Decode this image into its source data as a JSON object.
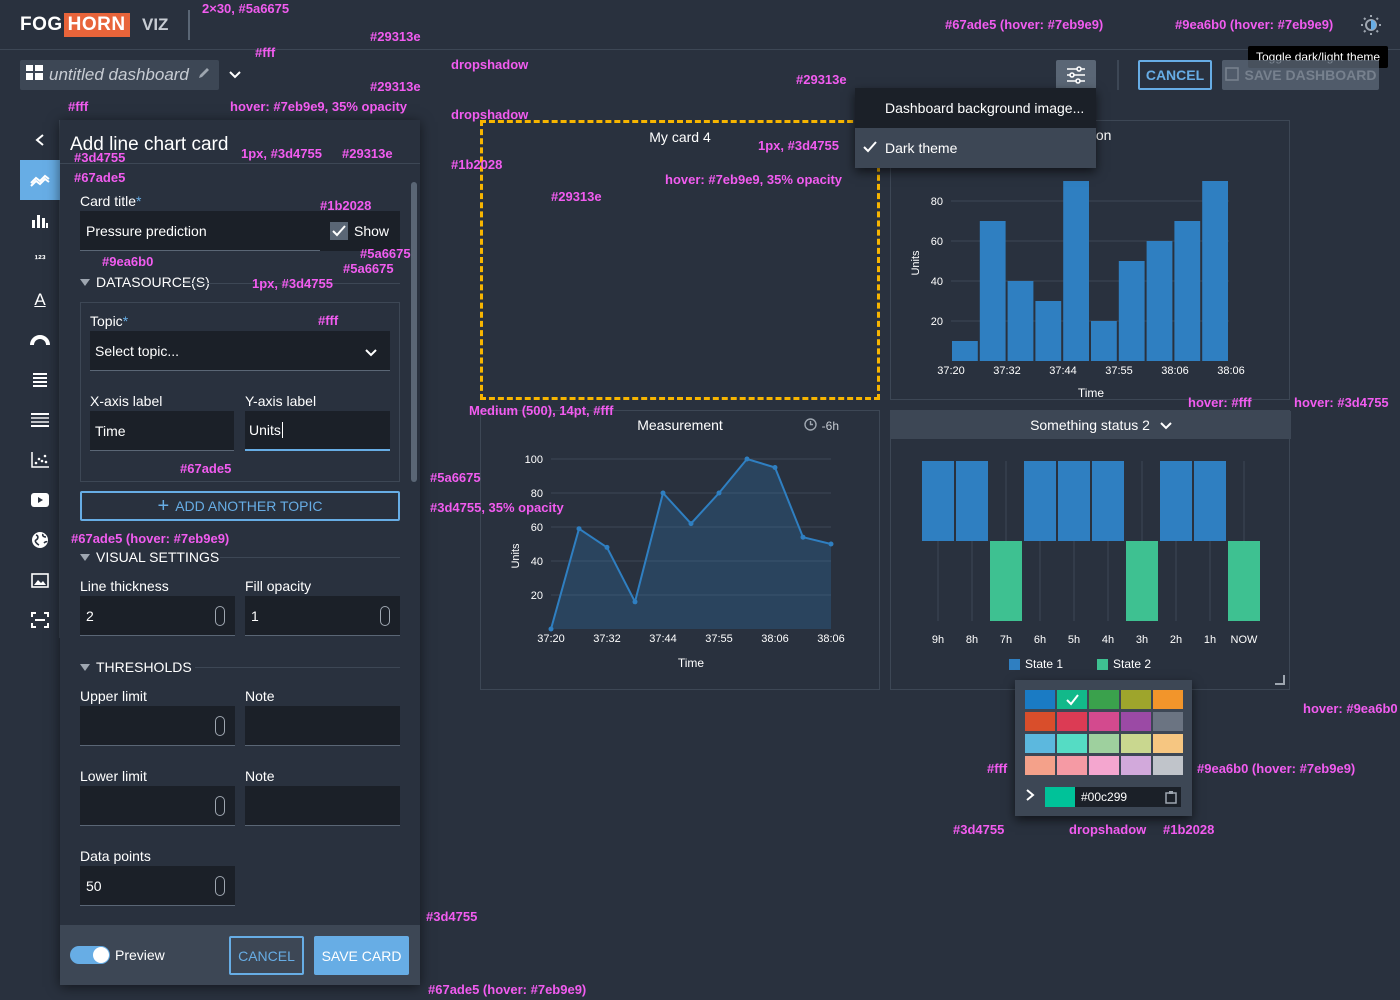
{
  "app": {
    "logo_part1": "FOG",
    "logo_part2": "HORN",
    "product": "VIZ"
  },
  "header": {
    "dashboard_name": "untitled dashboard",
    "cancel_label": "CANCEL",
    "save_dashboard_label": "SAVE DASHBOARD",
    "theme_tooltip": "Toggle dark/light theme"
  },
  "settings_menu": {
    "items": [
      {
        "label": "Dashboard background image..."
      },
      {
        "label": "Dark theme",
        "checked": true
      }
    ]
  },
  "panel": {
    "title": "Add line chart card",
    "card_title_label": "Card title",
    "required_mark": "*",
    "card_title_value": "Pressure prediction",
    "show_label": "Show",
    "datasources_label": "DATASOURCE(S)",
    "topic_label": "Topic",
    "topic_placeholder": "Select topic...",
    "x_axis_label": "X-axis label",
    "x_axis_value": "Time",
    "y_axis_label": "Y-axis label",
    "y_axis_value": "Units",
    "add_topic_label": "ADD ANOTHER TOPIC",
    "visual_settings_label": "VISUAL SETTINGS",
    "line_thickness_label": "Line thickness",
    "line_thickness_value": "2",
    "fill_opacity_label": "Fill opacity",
    "fill_opacity_value": "1",
    "thresholds_label": "THRESHOLDS",
    "upper_limit_label": "Upper limit",
    "note_label": "Note",
    "lower_limit_label": "Lower limit",
    "data_points_label": "Data points",
    "data_points_value": "50",
    "preview_label": "Preview",
    "cancel_label": "CANCEL",
    "save_card_label": "SAVE CARD",
    "rail_icons": [
      "chevron-left-icon",
      "line-chart-icon",
      "bar-chart-icon",
      "number-icon",
      "text-icon",
      "gauge-icon",
      "list-icon",
      "table-icon",
      "scatter-icon",
      "video-icon",
      "globe-icon",
      "image-icon",
      "screenshot-icon"
    ]
  },
  "cards": {
    "card4_title": "My card 4",
    "pressure_title": "rediction",
    "measurement_title": "Measurement",
    "measurement_range": "-6h",
    "status_title": "Something status 2"
  },
  "chart_data": [
    {
      "type": "bar",
      "title": "rediction",
      "ylabel": "Units",
      "xlabel": "Time",
      "ylim": [
        0,
        90
      ],
      "yticks": [
        20,
        40,
        60,
        80
      ],
      "xticks": [
        "37:20",
        "37:32",
        "37:44",
        "37:55",
        "38:06",
        "38:06"
      ],
      "values": [
        10,
        70,
        40,
        30,
        90,
        20,
        50,
        60,
        70,
        90
      ],
      "color": "#2f7fc1"
    },
    {
      "type": "area",
      "title": "Measurement",
      "ylabel": "Units",
      "xlabel": "Time",
      "ylim": [
        0,
        100
      ],
      "yticks": [
        20,
        40,
        60,
        80,
        100
      ],
      "xticks": [
        "37:20",
        "37:32",
        "37:44",
        "37:55",
        "38:06",
        "38:06"
      ],
      "values": [
        0,
        59,
        48,
        16,
        80,
        62,
        80,
        100,
        95,
        54,
        50
      ],
      "color": "#2f7fc1"
    },
    {
      "type": "bar",
      "title": "Something status 2",
      "categories": [
        "9h",
        "8h",
        "7h",
        "6h",
        "5h",
        "4h",
        "3h",
        "2h",
        "1h",
        "NOW"
      ],
      "series": [
        {
          "name": "State 1",
          "values": [
            1,
            1,
            0,
            1,
            1,
            1,
            0,
            1,
            1,
            0
          ],
          "color": "#2f7fc1"
        },
        {
          "name": "State 2",
          "values": [
            0,
            0,
            1,
            0,
            0,
            0,
            1,
            0,
            0,
            1
          ],
          "color": "#3ec191"
        }
      ]
    }
  ],
  "color_picker": {
    "rows": [
      [
        "#1a7bc4",
        "#12b98a",
        "#3aa14c",
        "#9ea52c",
        "#f2952b"
      ],
      [
        "#d94e2b",
        "#dc3b54",
        "#d34a8e",
        "#9b4aa5",
        "#6b7482"
      ],
      [
        "#5cb8de",
        "#55dcc4",
        "#9ed09e",
        "#c9d78f",
        "#f6c681"
      ],
      [
        "#f4a18a",
        "#f59aa4",
        "#f4a6cf",
        "#d2a9db",
        "#c0c4ca"
      ]
    ],
    "selected_index": 1,
    "hex_value": "#00c299",
    "current_swatch": "#00c299"
  },
  "annotations": [
    "2×30, #5a6675",
    "#29313e",
    "dropshadow",
    "#fff",
    "#29313e",
    "hover: #7eb9e9, 35% opacity",
    "dropshadow",
    "#fff",
    "#3d4755",
    "#67ade5",
    "1px, #3d4755",
    "#29313e",
    "#1b2028",
    "#1b2028",
    "#29313e",
    "#5a6675",
    "#5a6675",
    "#9ea6b0",
    "1px, #3d4755",
    "#fff",
    "#67ade5",
    "#5a6675",
    "#3d4755, 35% opacity",
    "#67ade5 (hover: #7eb9e9)",
    "#67ade5 (hover: #7eb9e9)",
    "#9ea6b0 (hover: #7eb9e9)",
    "#29313e",
    "1px, #3d4755",
    "hover: #7eb9e9, 35% opacity",
    "Medium (500), 14pt, #fff",
    "hover: #fff",
    "hover: #3d4755",
    "hover: #9ea6b0",
    "#fff",
    "#9ea6b0 (hover: #7eb9e9)",
    "#3d4755",
    "dropshadow",
    "#1b2028",
    "#3d4755",
    "#67ade5 (hover: #7eb9e9)",
    "dropshadow"
  ]
}
